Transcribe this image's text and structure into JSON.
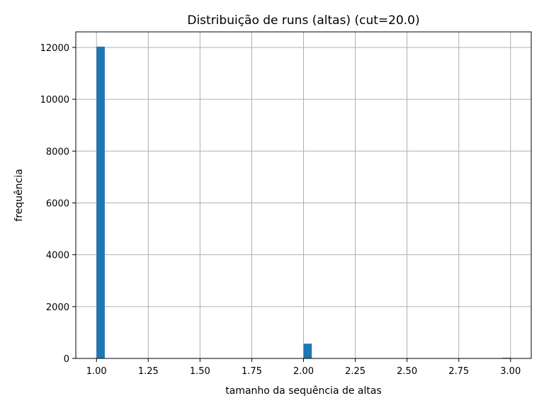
{
  "chart_data": {
    "type": "bar",
    "title": "Distribuição de runs (altas)  (cut=20.0)",
    "xlabel": "tamanho da sequência de altas",
    "ylabel": "frequência",
    "xlim": [
      0.9,
      3.1
    ],
    "ylim": [
      0,
      12600
    ],
    "xticks": [
      1.0,
      1.25,
      1.5,
      1.75,
      2.0,
      2.25,
      2.5,
      2.75,
      3.0
    ],
    "xtick_labels": [
      "1.00",
      "1.25",
      "1.50",
      "1.75",
      "2.00",
      "2.25",
      "2.50",
      "2.75",
      "3.00"
    ],
    "yticks": [
      0,
      2000,
      4000,
      6000,
      8000,
      10000,
      12000
    ],
    "ytick_labels": [
      "0",
      "2000",
      "4000",
      "6000",
      "8000",
      "10000",
      "12000"
    ],
    "grid": true,
    "bin_width": 0.04,
    "bars": [
      {
        "x_start": 1.0,
        "x_end": 1.04,
        "value": 12030
      },
      {
        "x_start": 2.0,
        "x_end": 2.04,
        "value": 570
      },
      {
        "x_start": 2.96,
        "x_end": 3.0,
        "value": 25
      }
    ],
    "color": "#1f77b4"
  }
}
